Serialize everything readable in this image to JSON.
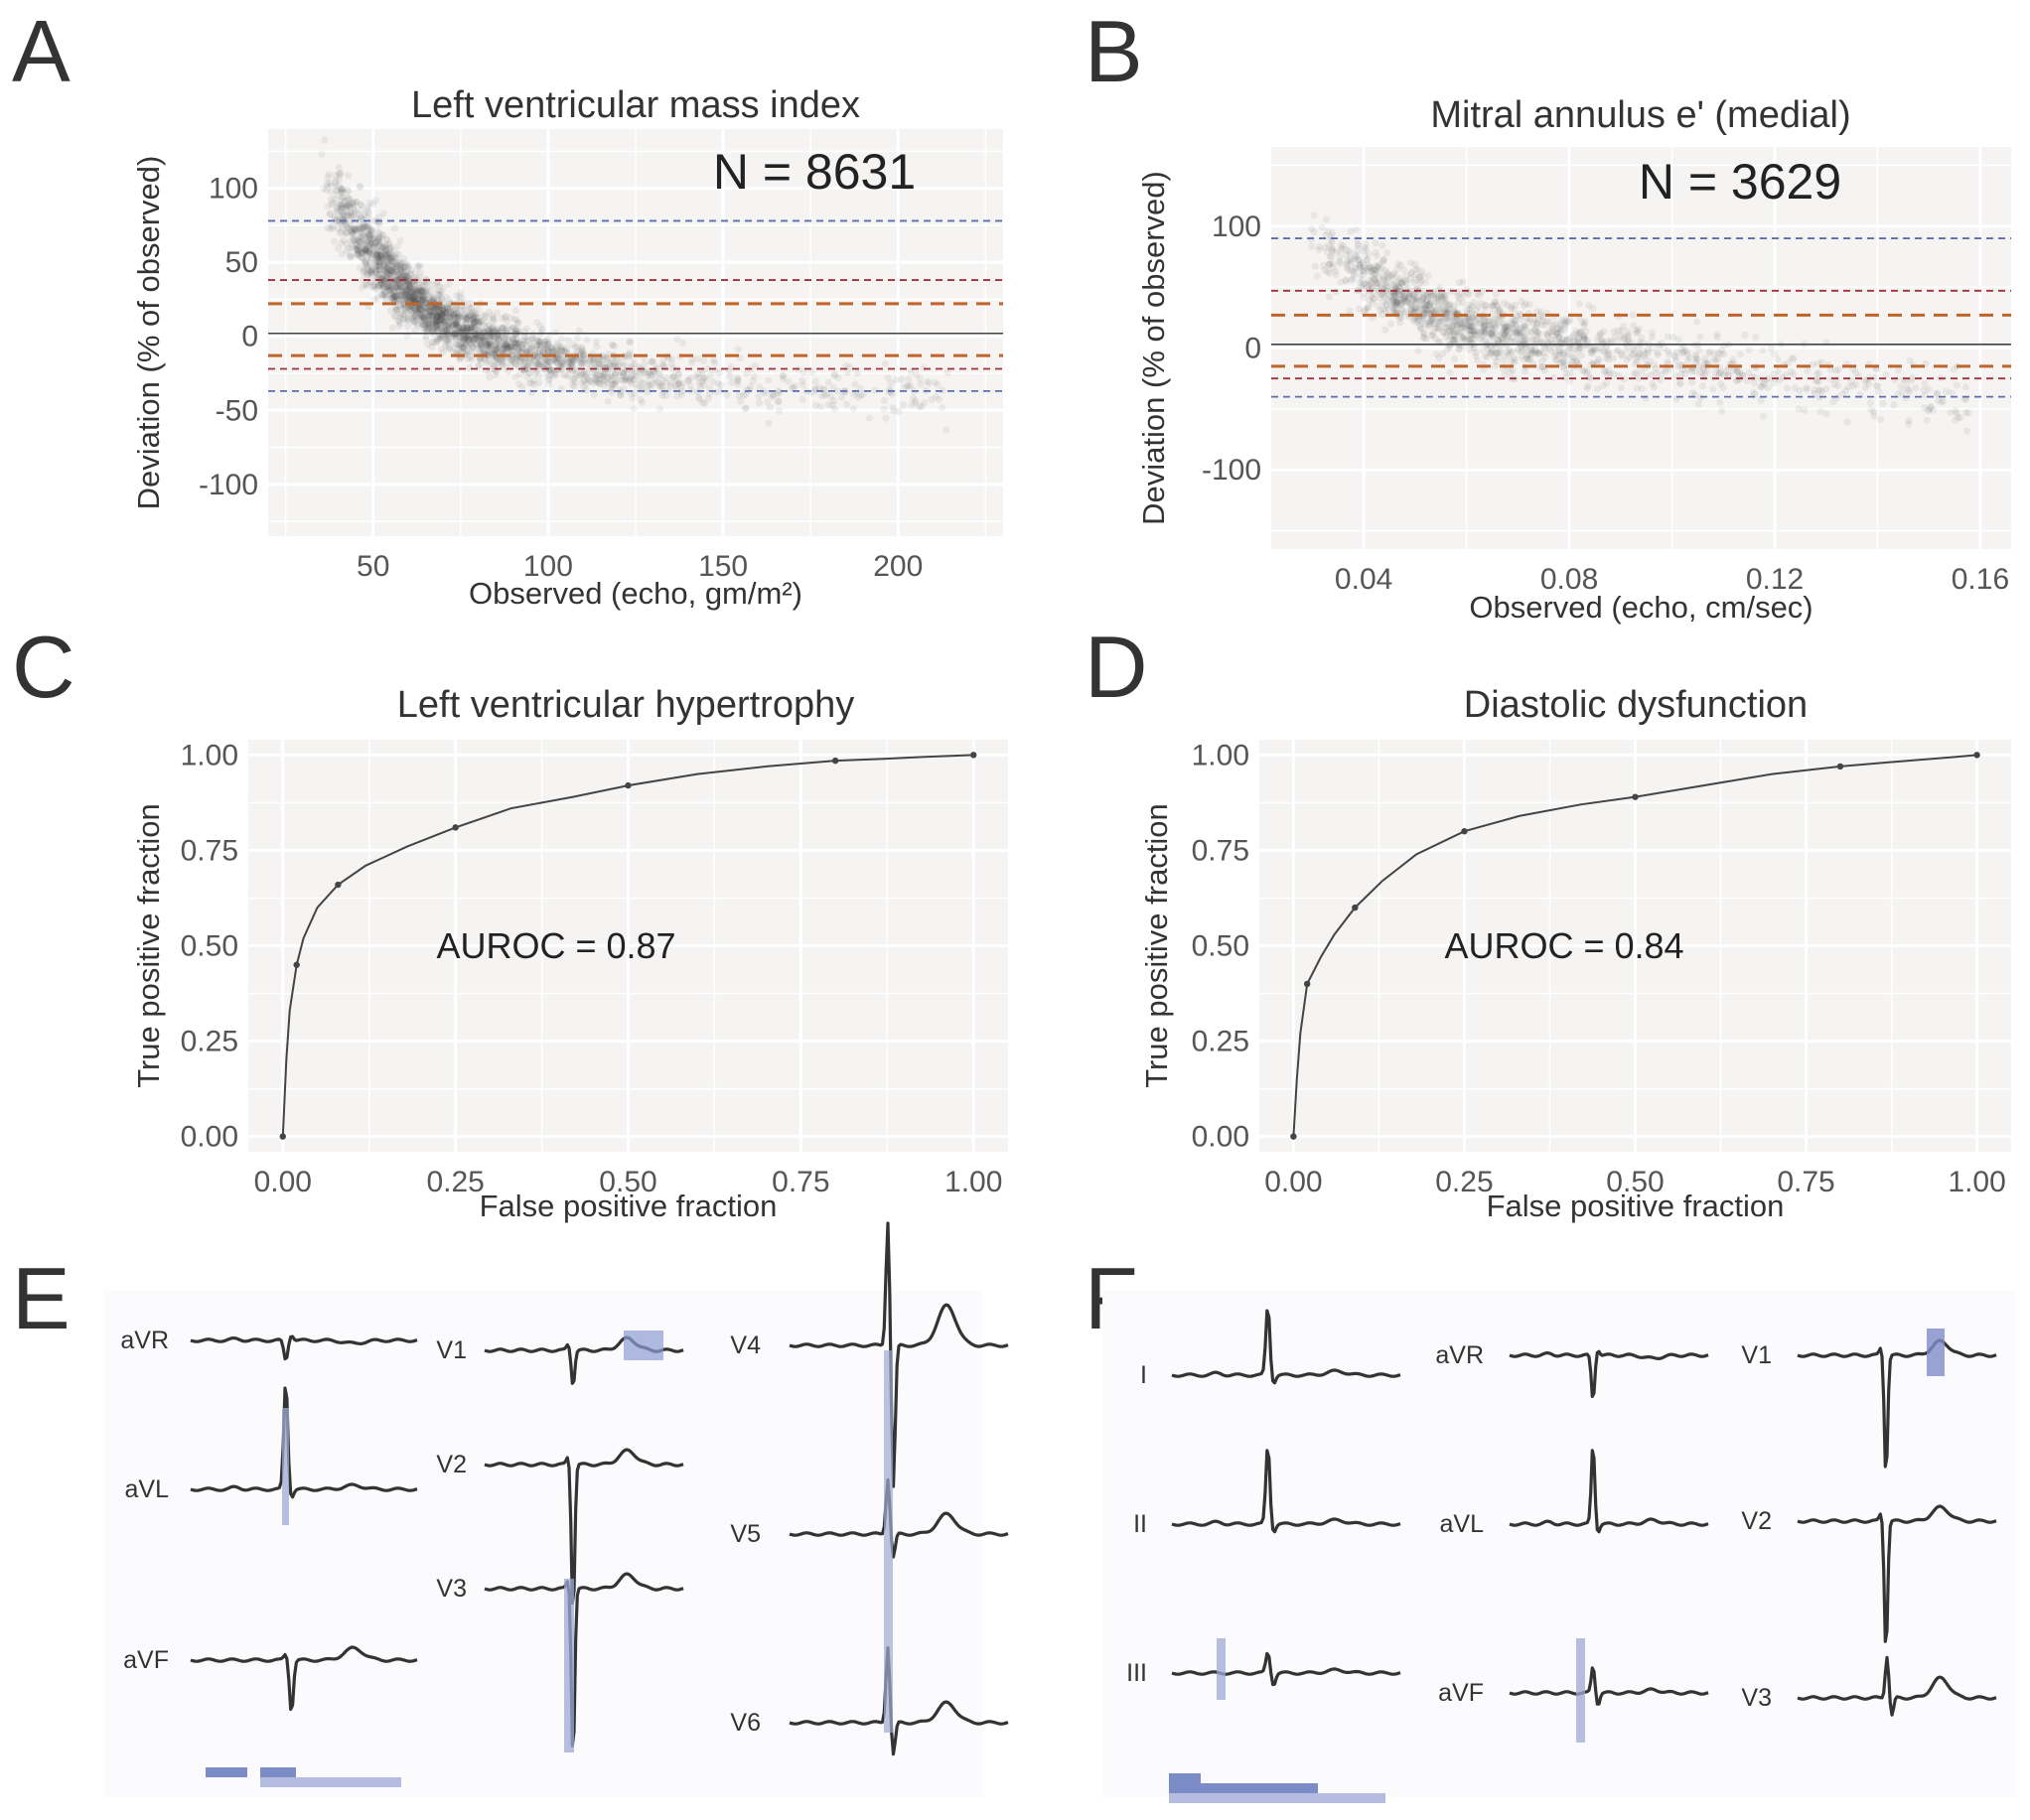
{
  "panels": {
    "A": {
      "letter": "A"
    },
    "B": {
      "letter": "B"
    },
    "C": {
      "letter": "C"
    },
    "D": {
      "letter": "D"
    },
    "E": {
      "letter": "E"
    },
    "F": {
      "letter": "F"
    }
  },
  "chart_data": [
    {
      "id": "A",
      "type": "scatter",
      "title": "Left ventricular mass index",
      "xlabel": "Observed (echo, gm/m²)",
      "ylabel": "Deviation (% of observed)",
      "annotation": "N = 8631",
      "xlim": [
        20,
        230
      ],
      "ylim": [
        -135,
        140
      ],
      "xticks": [
        50,
        100,
        150,
        200
      ],
      "xtick_labels": [
        "50",
        "100",
        "150",
        "200"
      ],
      "yticks": [
        100,
        50,
        0,
        -50,
        -100
      ],
      "ytick_labels": [
        "100",
        "50",
        "0",
        "-50",
        "-100"
      ],
      "reference_lines": [
        {
          "y": 78,
          "color": "#5a6fb0",
          "style": "dashed-thin"
        },
        {
          "y": 38,
          "color": "#a0303a",
          "style": "dashed-thin"
        },
        {
          "y": 22,
          "color": "#c0652a",
          "style": "dashed-thick"
        },
        {
          "y": 2,
          "color": "#444444",
          "style": "solid"
        },
        {
          "y": -13,
          "color": "#c0652a",
          "style": "dashed-thick"
        },
        {
          "y": -22,
          "color": "#a0303a",
          "style": "dashed-thin"
        },
        {
          "y": -37,
          "color": "#5a6fb0",
          "style": "dashed-thin"
        }
      ],
      "trend": {
        "x": [
          35,
          45,
          55,
          65,
          75,
          85,
          100,
          120,
          150,
          200,
          220
        ],
        "y": [
          110,
          70,
          40,
          18,
          5,
          -5,
          -15,
          -25,
          -32,
          -38,
          -40
        ]
      },
      "n_points": 8631,
      "point_color": "#333333"
    },
    {
      "id": "B",
      "type": "scatter",
      "title": "Mitral annulus e' (medial)",
      "xlabel": "Observed (echo, cm/sec)",
      "ylabel": "Deviation (% of observed)",
      "annotation": "N = 3629",
      "xlim": [
        0.022,
        0.166
      ],
      "ylim": [
        -165,
        165
      ],
      "xticks": [
        0.04,
        0.08,
        0.12,
        0.16
      ],
      "xtick_labels": [
        "0.04",
        "0.08",
        "0.12",
        "0.16"
      ],
      "yticks": [
        100,
        0,
        -100
      ],
      "ytick_labels": [
        "100",
        "0",
        "-100"
      ],
      "reference_lines": [
        {
          "y": 90,
          "color": "#5a6fb0",
          "style": "dashed-thin"
        },
        {
          "y": 47,
          "color": "#a0303a",
          "style": "dashed-thin"
        },
        {
          "y": 27,
          "color": "#c0652a",
          "style": "dashed-thick"
        },
        {
          "y": 3,
          "color": "#444444",
          "style": "solid"
        },
        {
          "y": -15,
          "color": "#c0652a",
          "style": "dashed-thick"
        },
        {
          "y": -25,
          "color": "#a0303a",
          "style": "dashed-thin"
        },
        {
          "y": -40,
          "color": "#5a6fb0",
          "style": "dashed-thin"
        }
      ],
      "trend": {
        "x": [
          0.03,
          0.04,
          0.05,
          0.06,
          0.08,
          0.1,
          0.12,
          0.14,
          0.16
        ],
        "y": [
          85,
          60,
          35,
          18,
          2,
          -12,
          -25,
          -33,
          -40
        ]
      },
      "n_points": 3629,
      "point_color": "#333333"
    },
    {
      "id": "C",
      "type": "line",
      "title": "Left ventricular hypertrophy",
      "xlabel": "False positive fraction",
      "ylabel": "True positive fraction",
      "annotation": "AUROC = 0.87",
      "xlim": [
        -0.05,
        1.05
      ],
      "ylim": [
        -0.04,
        1.04
      ],
      "xticks": [
        0,
        0.25,
        0.5,
        0.75,
        1
      ],
      "xtick_labels": [
        "0.00",
        "0.25",
        "0.50",
        "0.75",
        "1.00"
      ],
      "yticks": [
        0,
        0.25,
        0.5,
        0.75,
        1
      ],
      "ytick_labels": [
        "0.00",
        "0.25",
        "0.50",
        "0.75",
        "1.00"
      ],
      "x": [
        0,
        0.005,
        0.01,
        0.02,
        0.03,
        0.05,
        0.08,
        0.12,
        0.18,
        0.25,
        0.33,
        0.42,
        0.5,
        0.6,
        0.7,
        0.8,
        0.87,
        0.93,
        1
      ],
      "y": [
        0,
        0.2,
        0.33,
        0.45,
        0.52,
        0.6,
        0.66,
        0.71,
        0.76,
        0.81,
        0.86,
        0.89,
        0.92,
        0.95,
        0.97,
        0.985,
        0.99,
        0.995,
        1
      ]
    },
    {
      "id": "D",
      "type": "line",
      "title": "Diastolic dysfunction",
      "xlabel": "False positive fraction",
      "ylabel": "True positive fraction",
      "annotation": "AUROC = 0.84",
      "xlim": [
        -0.05,
        1.05
      ],
      "ylim": [
        -0.04,
        1.04
      ],
      "xticks": [
        0,
        0.25,
        0.5,
        0.75,
        1
      ],
      "xtick_labels": [
        "0.00",
        "0.25",
        "0.50",
        "0.75",
        "1.00"
      ],
      "yticks": [
        0,
        0.25,
        0.5,
        0.75,
        1
      ],
      "ytick_labels": [
        "0.00",
        "0.25",
        "0.50",
        "0.75",
        "1.00"
      ],
      "x": [
        0,
        0.005,
        0.01,
        0.02,
        0.04,
        0.06,
        0.09,
        0.13,
        0.18,
        0.25,
        0.33,
        0.42,
        0.5,
        0.6,
        0.7,
        0.8,
        0.9,
        0.97,
        1
      ],
      "y": [
        0,
        0.15,
        0.27,
        0.4,
        0.47,
        0.53,
        0.6,
        0.67,
        0.74,
        0.8,
        0.84,
        0.87,
        0.89,
        0.92,
        0.95,
        0.97,
        0.985,
        0.995,
        1
      ]
    }
  ],
  "ecg": {
    "E": {
      "leads": [
        {
          "label": "aVR",
          "shape": "negQ"
        },
        {
          "label": "aVL",
          "shape": "tallR"
        },
        {
          "label": "aVF",
          "shape": "negS"
        },
        {
          "label": "V1",
          "shape": "negS"
        },
        {
          "label": "V2",
          "shape": "deepS"
        },
        {
          "label": "V3",
          "shape": "deepS"
        },
        {
          "label": "V4",
          "shape": "hugeRS"
        },
        {
          "label": "V5",
          "shape": "rsT"
        },
        {
          "label": "V6",
          "shape": "rsT"
        }
      ]
    },
    "F": {
      "leads": [
        {
          "label": "I",
          "shape": "tallR"
        },
        {
          "label": "II",
          "shape": "tallR"
        },
        {
          "label": "III",
          "shape": "smallR"
        },
        {
          "label": "aVR",
          "shape": "negQ"
        },
        {
          "label": "aVL",
          "shape": "tallR"
        },
        {
          "label": "aVF",
          "shape": "smallR"
        },
        {
          "label": "V1",
          "shape": "deepS"
        },
        {
          "label": "V2",
          "shape": "deepS"
        },
        {
          "label": "V3",
          "shape": "rsT"
        }
      ]
    }
  }
}
